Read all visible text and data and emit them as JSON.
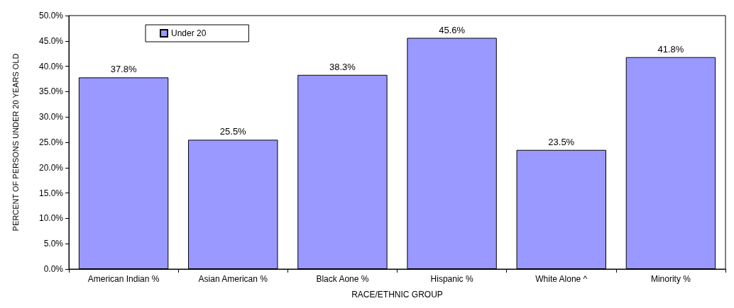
{
  "chart_data": {
    "type": "bar",
    "xlabel": "RACE/ETHNIC GROUP",
    "ylabel": "PERCENT OF PERSONS UNDER 20 YEARS OLD",
    "categories": [
      "American Indian %",
      "Asian American %",
      "Black Aone %",
      "Hispanic %",
      "White Alone ^",
      "Minority %"
    ],
    "series": [
      {
        "name": "Under 20",
        "color": "#9999ff",
        "values": [
          37.8,
          25.5,
          38.3,
          45.6,
          23.5,
          41.8
        ],
        "value_labels": [
          "37.8%",
          "25.5%",
          "38.3%",
          "45.6%",
          "23.5%",
          "41.8%"
        ]
      }
    ],
    "ylim": [
      0,
      50
    ],
    "yticks": [
      {
        "value": 0,
        "label": "0.0%"
      },
      {
        "value": 5,
        "label": "5.0%"
      },
      {
        "value": 10,
        "label": "10.0%"
      },
      {
        "value": 15,
        "label": "15.0%"
      },
      {
        "value": 20,
        "label": "20.0%"
      },
      {
        "value": 25,
        "label": "25.0%"
      },
      {
        "value": 30,
        "label": "30.0%"
      },
      {
        "value": 35,
        "label": "35.0%"
      },
      {
        "value": 40,
        "label": "40.0%"
      },
      {
        "value": 45,
        "label": "45.0%"
      },
      {
        "value": 50,
        "label": "50.0%"
      }
    ],
    "grid": false,
    "legend": "top left"
  }
}
